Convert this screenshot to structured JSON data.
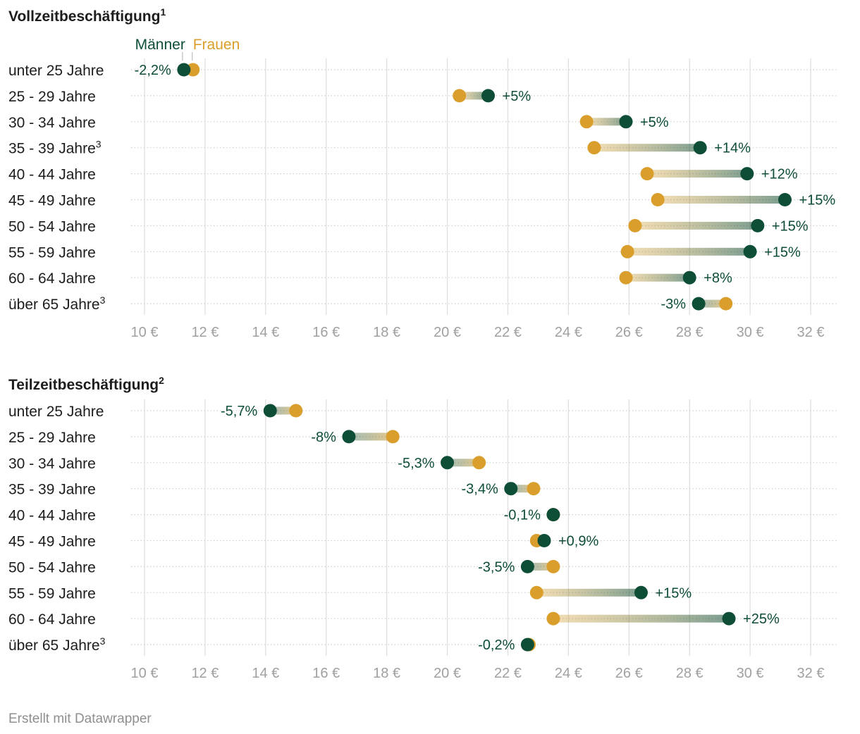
{
  "colors": {
    "men": "#0e4d36",
    "women": "#d99e2b",
    "grid": "#dddddd",
    "text": "#1d1d1d",
    "tick": "#a0a0a0",
    "footer": "#8f8f8f"
  },
  "legend": {
    "men": "Männer",
    "women": "Frauen"
  },
  "footer": "Erstellt mit Datawrapper",
  "chart_data": [
    {
      "type": "dot-range",
      "title": "Vollzeitbeschäftigung",
      "title_sup": "1",
      "xlim": [
        10,
        32
      ],
      "ticks": [
        "10 €",
        "12 €",
        "14 €",
        "16 €",
        "18 €",
        "20 €",
        "22 €",
        "24 €",
        "26 €",
        "28 €",
        "30 €",
        "32 €"
      ],
      "tick_values": [
        10,
        12,
        14,
        16,
        18,
        20,
        22,
        24,
        26,
        28,
        30,
        32
      ],
      "categories": [
        "unter 25 Jahre",
        "25 - 29 Jahre",
        "30 - 34 Jahre",
        "35 - 39 Jahre",
        "40 - 44 Jahre",
        "45 - 49 Jahre",
        "50 - 54 Jahre",
        "55 - 59 Jahre",
        "60 - 64 Jahre",
        "über 65 Jahre"
      ],
      "category_sup": [
        "",
        "",
        "",
        "3",
        "",
        "",
        "",
        "",
        "",
        "3"
      ],
      "series": [
        {
          "name": "Männer",
          "values": [
            11.3,
            21.35,
            25.9,
            28.35,
            29.9,
            31.15,
            30.25,
            30.0,
            28.0,
            28.3
          ]
        },
        {
          "name": "Frauen",
          "values": [
            11.6,
            20.4,
            24.6,
            24.85,
            26.6,
            26.95,
            26.2,
            25.95,
            25.9,
            29.2
          ]
        }
      ],
      "differences": [
        "-2,2%",
        "+5%",
        "+5%",
        "+14%",
        "+12%",
        "+15%",
        "+15%",
        "+15%",
        "+8%",
        "-3%"
      ]
    },
    {
      "type": "dot-range",
      "title": "Teilzeitbeschäftigung",
      "title_sup": "2",
      "xlim": [
        10,
        32
      ],
      "ticks": [
        "10 €",
        "12 €",
        "14 €",
        "16 €",
        "18 €",
        "20 €",
        "22 €",
        "24 €",
        "26 €",
        "28 €",
        "30 €",
        "32 €"
      ],
      "tick_values": [
        10,
        12,
        14,
        16,
        18,
        20,
        22,
        24,
        26,
        28,
        30,
        32
      ],
      "categories": [
        "unter 25 Jahre",
        "25 - 29 Jahre",
        "30 - 34 Jahre",
        "35 - 39 Jahre",
        "40 - 44 Jahre",
        "45 - 49 Jahre",
        "50 - 54 Jahre",
        "55 - 59 Jahre",
        "60 - 64 Jahre",
        "über 65 Jahre"
      ],
      "category_sup": [
        "",
        "",
        "",
        "",
        "",
        "",
        "",
        "",
        "",
        "3"
      ],
      "series": [
        {
          "name": "Männer",
          "values": [
            14.15,
            16.75,
            20.0,
            22.1,
            23.5,
            23.2,
            22.65,
            26.4,
            29.3,
            22.65
          ]
        },
        {
          "name": "Frauen",
          "values": [
            15.0,
            18.2,
            21.05,
            22.85,
            23.5,
            22.95,
            23.5,
            22.95,
            23.5,
            22.7
          ]
        }
      ],
      "differences": [
        "-5,7%",
        "-8%",
        "-5,3%",
        "-3,4%",
        "-0,1%",
        "+0,9%",
        "-3,5%",
        "+15%",
        "+25%",
        "-0,2%"
      ]
    }
  ]
}
